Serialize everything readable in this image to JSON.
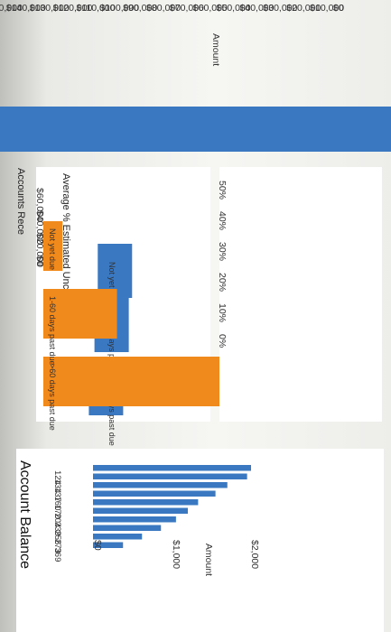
{
  "charts": {
    "amount_axis": {
      "label": "Amount",
      "ticks": [
        "$150,000",
        "$140,000",
        "$130,000",
        "$120,000",
        "$110,000",
        "$100,000",
        "$90,000",
        "$80,000",
        "$70,000",
        "$60,000",
        "$50,000",
        "$40,000",
        "$30,000",
        "$20,000",
        "$10,000",
        "$0"
      ]
    },
    "accounts_receivable": {
      "title": "Accounts Rece",
      "ticks": [
        "$60,000",
        "$40,000",
        "$20,000",
        "$0"
      ],
      "categories": [
        "Not yet due",
        "1-60 days past due",
        ">60 days past due"
      ]
    },
    "uncollectible": {
      "title": "Average % Estimated Uncollectible",
      "ticks": [
        "50%",
        "40%",
        "30%",
        "20%",
        "10%",
        "0%"
      ],
      "categories": [
        "Not yet due",
        "1-60 days past due",
        ">60 days past due"
      ]
    },
    "account_balance": {
      "title": "Account Balance",
      "xlabel": "Amount",
      "ticks": [
        "$0",
        "$1,000",
        "$2,000"
      ]
    }
  },
  "chart_data": [
    {
      "type": "bar",
      "title": "",
      "ylabel": "Amount",
      "categories": [
        ""
      ],
      "values": [
        150000
      ],
      "ylim": [
        0,
        150000
      ],
      "color": "#3a78c2"
    },
    {
      "type": "bar",
      "title": "Accounts Rece",
      "categories": [
        "Not yet due",
        "1-60 days past due",
        ">60 days past due"
      ],
      "values": [
        50000,
        40000,
        23000
      ],
      "ylim": [
        0,
        65000
      ],
      "color": "#3a78c2"
    },
    {
      "type": "bar",
      "title": "Average % Estimated Uncollectible",
      "categories": [
        "Not yet due",
        "1-60 days past due",
        ">60 days past due"
      ],
      "values": [
        0.06,
        0.23,
        0.55
      ],
      "ylim": [
        0,
        0.55
      ],
      "color": "#f08a1c"
    },
    {
      "type": "bar",
      "title": "Account Balance",
      "xlabel": "Amount",
      "categories": [
        "124",
        "134",
        "137",
        "160",
        "170",
        "204",
        "239",
        "256",
        "273",
        "369"
      ],
      "values": [
        2000,
        1950,
        1700,
        1550,
        1330,
        1200,
        1050,
        860,
        620,
        380
      ],
      "xlim": [
        0,
        2000
      ],
      "color": "#3a78c2"
    }
  ]
}
